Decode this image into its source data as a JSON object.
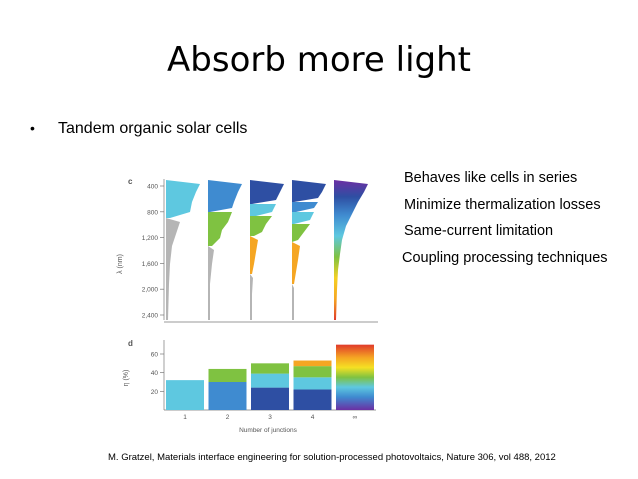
{
  "slide": {
    "title": "Absorb more light",
    "bullet": "Tandem organic solar cells",
    "points": [
      "Behaves like cells in series",
      "Minimize thermalization losses",
      "Same-current limitation",
      "Coupling processing techniques"
    ],
    "citation": "M. Gratzel,  Materials interface engineering for solution-processed photovoltaics, Nature 306, vol 488,  2012"
  },
  "figure": {
    "panel_c_label": "c",
    "panel_d_label": "d",
    "top_ylabel": "λ (nm)",
    "top_ticks": [
      "400",
      "800",
      "1,200",
      "1,600",
      "2,000",
      "2,400"
    ],
    "bottom_ylabel": "η (%)",
    "bottom_ticks": [
      "20",
      "40",
      "60"
    ],
    "xlabel": "Number of junctions",
    "xticks": [
      "1",
      "2",
      "3",
      "4",
      "∞"
    ],
    "colors": {
      "cyan": "#5ec8e0",
      "blue": "#3f8bd0",
      "navy": "#2e4fa3",
      "green": "#7fc241",
      "orange": "#f5a623",
      "grey": "#b5b5b5"
    }
  },
  "chart_data": {
    "type": "bar",
    "categories": [
      "1",
      "2",
      "3",
      "4",
      "∞"
    ],
    "series": [
      {
        "values": [
          32,
          30,
          24,
          22,
          0
        ]
      },
      {
        "values": [
          0,
          14,
          15,
          13,
          0
        ]
      },
      {
        "values": [
          0,
          0,
          11,
          12,
          0
        ]
      },
      {
        "values": [
          0,
          0,
          0,
          6,
          0
        ]
      },
      {
        "values": [
          0,
          0,
          0,
          0,
          70
        ]
      }
    ],
    "xlabel": "Number of junctions",
    "ylabel": "η (%)",
    "ylim": [
      0,
      75
    ],
    "yticks": [
      20,
      40,
      60
    ],
    "grid": false,
    "legend": "none"
  }
}
